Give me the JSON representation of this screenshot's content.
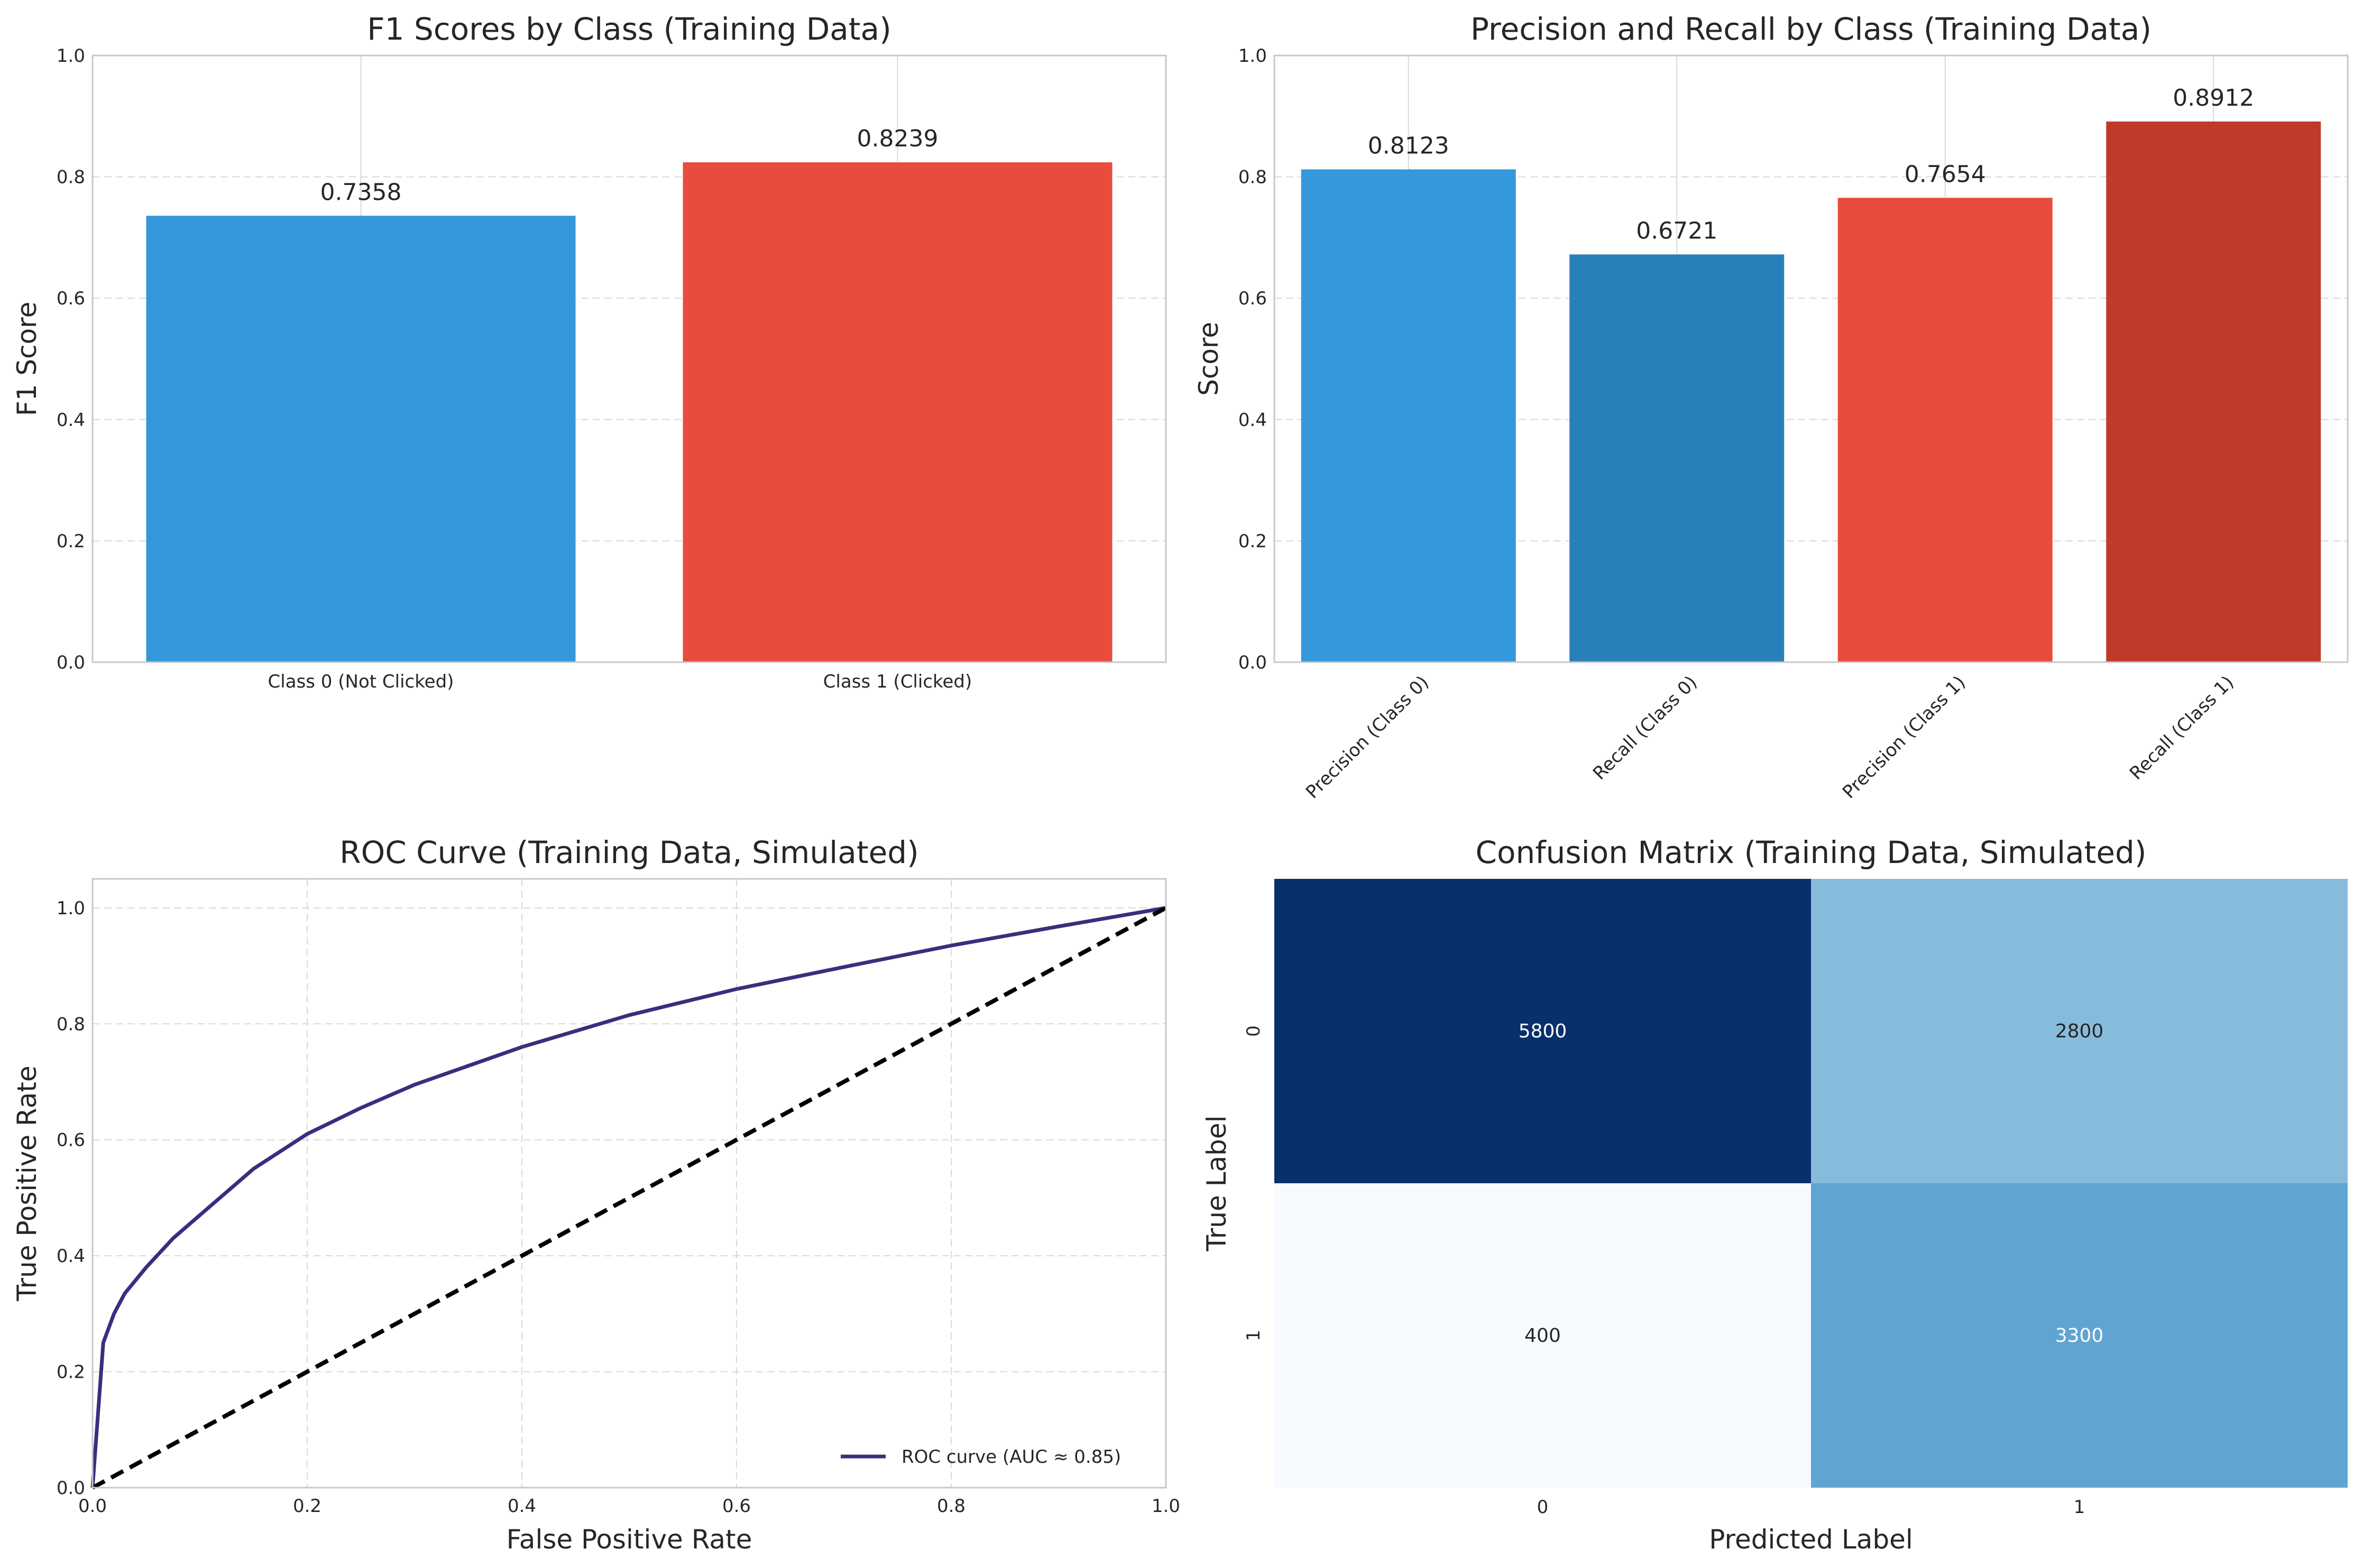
{
  "chart_data": [
    {
      "type": "bar",
      "title": "F1 Scores by Class (Training Data)",
      "xlabel": "",
      "ylabel": "F1 Score",
      "categories": [
        "Class 0 (Not Clicked)",
        "Class 1 (Clicked)"
      ],
      "values": [
        0.7358,
        0.8239
      ],
      "value_labels": [
        "0.7358",
        "0.8239"
      ],
      "colors": [
        "#3498db",
        "#e74c3c"
      ],
      "ylim": [
        0,
        1
      ],
      "yticks": [
        "0.0",
        "0.2",
        "0.4",
        "0.6",
        "0.8",
        "1.0"
      ],
      "grid": true
    },
    {
      "type": "bar",
      "title": "Precision and Recall by Class (Training Data)",
      "xlabel": "",
      "ylabel": "Score",
      "categories": [
        "Precision (Class 0)",
        "Recall (Class 0)",
        "Precision (Class 1)",
        "Recall (Class 1)"
      ],
      "values": [
        0.8123,
        0.6721,
        0.7654,
        0.8912
      ],
      "value_labels": [
        "0.8123",
        "0.6721",
        "0.7654",
        "0.8912"
      ],
      "colors": [
        "#3498db",
        "#2980b9",
        "#e74c3c",
        "#c0392b"
      ],
      "ylim": [
        0,
        1
      ],
      "yticks": [
        "0.0",
        "0.2",
        "0.4",
        "0.6",
        "0.8",
        "1.0"
      ],
      "xtick_rotation": 45,
      "grid": true
    },
    {
      "type": "line",
      "title": "ROC Curve (Training Data, Simulated)",
      "xlabel": "False Positive Rate",
      "ylabel": "True Positive Rate",
      "xlim": [
        0,
        1
      ],
      "ylim": [
        0,
        1.05
      ],
      "xticks": [
        "0.0",
        "0.2",
        "0.4",
        "0.6",
        "0.8",
        "1.0"
      ],
      "yticks": [
        "0.0",
        "0.2",
        "0.4",
        "0.6",
        "0.8",
        "1.0"
      ],
      "series": [
        {
          "name": "ROC curve (AUC ≈ 0.85)",
          "color": "#3b2d7e",
          "style": "solid",
          "x": [
            0,
            0.01,
            0.02,
            0.03,
            0.05,
            0.075,
            0.1,
            0.15,
            0.2,
            0.25,
            0.3,
            0.4,
            0.5,
            0.6,
            0.7,
            0.8,
            0.9,
            1.0
          ],
          "y": [
            0,
            0.25,
            0.3,
            0.335,
            0.38,
            0.43,
            0.47,
            0.55,
            0.61,
            0.655,
            0.695,
            0.76,
            0.815,
            0.86,
            0.898,
            0.935,
            0.968,
            1.0
          ]
        },
        {
          "name": "",
          "color": "#000000",
          "style": "dashed",
          "x": [
            0,
            1
          ],
          "y": [
            0,
            1
          ]
        }
      ],
      "legend_position": "lower right",
      "grid": true
    },
    {
      "type": "heatmap",
      "title": "Confusion Matrix (Training Data, Simulated)",
      "xlabel": "Predicted Label",
      "ylabel": "True Label",
      "row_labels": [
        "0",
        "1"
      ],
      "col_labels": [
        "0",
        "1"
      ],
      "values": [
        [
          5800,
          2800
        ],
        [
          400,
          3300
        ]
      ],
      "cell_labels": [
        [
          "5800",
          "2800"
        ],
        [
          "400",
          "3300"
        ]
      ],
      "colormap": "Blues",
      "cell_colors": [
        [
          "#08306b",
          "#86bbdc"
        ],
        [
          "#f7fbff",
          "#60a5d2"
        ]
      ],
      "text_colors": [
        [
          "#ffffff",
          "#262626"
        ],
        [
          "#262626",
          "#ffffff"
        ]
      ]
    }
  ]
}
